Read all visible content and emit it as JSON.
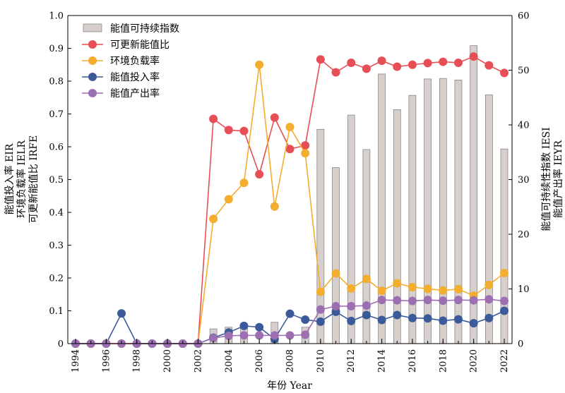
{
  "chart_data": {
    "type": "bar+line",
    "x": [
      1994,
      1995,
      1996,
      1997,
      1998,
      1999,
      2000,
      2001,
      2002,
      2003,
      2004,
      2005,
      2006,
      2007,
      2008,
      2009,
      2010,
      2011,
      2012,
      2013,
      2014,
      2015,
      2016,
      2017,
      2018,
      2019,
      2020,
      2021,
      2022
    ],
    "xticks": [
      1994,
      1996,
      1998,
      2000,
      2002,
      2004,
      2006,
      2008,
      2010,
      2012,
      2014,
      2016,
      2018,
      2020,
      2022
    ],
    "xlabel": "年份 Year",
    "ylabel_left": [
      "能值投入率 EIR",
      "环境负载率 IELR",
      "可更新能值比 IRFE"
    ],
    "ylabel_right": [
      "能值可持续性指数 IESI",
      "能值产出率 IEYR"
    ],
    "ylim_left": [
      0,
      1.0
    ],
    "yticks_left": [
      "0",
      "0.1",
      "0.2",
      "0.3",
      "0.4",
      "0.5",
      "0.6",
      "0.7",
      "0.8",
      "0.9",
      "1.0"
    ],
    "ylim_right": [
      0,
      60
    ],
    "yticks_right": [
      "0",
      "10",
      "20",
      "30",
      "40",
      "50",
      "60"
    ],
    "legend_position": "top-left",
    "bar_series": {
      "name": "能值可持续指数",
      "axis": "right",
      "color": "#d6cfcb",
      "edge_color": "#6b6b6b",
      "values": [
        0,
        0,
        0,
        0,
        0,
        0,
        0,
        0,
        0,
        2.7,
        3.0,
        3.0,
        0,
        3.9,
        0,
        3.0,
        39.2,
        32.2,
        41.8,
        35.5,
        49.3,
        42.8,
        45.4,
        48.4,
        48.5,
        48.2,
        54.5,
        45.5,
        35.6
      ]
    },
    "series": [
      {
        "name": "可更新能值比",
        "axis": "left",
        "color": "#e84e56",
        "values": [
          0,
          0,
          0,
          0,
          0,
          0,
          0,
          0,
          0,
          0.685,
          0.651,
          0.648,
          0.516,
          0.689,
          0.593,
          0.604,
          0.866,
          0.827,
          0.856,
          0.838,
          0.862,
          0.844,
          0.85,
          0.855,
          0.859,
          0.856,
          0.875,
          0.848,
          0.825
        ]
      },
      {
        "name": "环境负载率",
        "axis": "left",
        "color": "#f3ad2f",
        "values": [
          0,
          0,
          0,
          0,
          0,
          0,
          0,
          0,
          0,
          0.38,
          0.44,
          0.49,
          0.85,
          0.418,
          0.66,
          0.58,
          0.158,
          0.214,
          0.168,
          0.197,
          0.161,
          0.184,
          0.172,
          0.167,
          0.162,
          0.166,
          0.146,
          0.179,
          0.215
        ]
      },
      {
        "name": "能值投入率",
        "axis": "left",
        "color": "#3b5a9a",
        "values": [
          0,
          0,
          0,
          0.092,
          0,
          0,
          0,
          0,
          0,
          0.018,
          0.034,
          0.054,
          0.05,
          0.014,
          0.091,
          0.073,
          0.067,
          0.097,
          0.069,
          0.087,
          0.072,
          0.087,
          0.078,
          0.077,
          0.07,
          0.074,
          0.062,
          0.078,
          0.1
        ]
      },
      {
        "name": "能值产出率",
        "axis": "left",
        "color": "#9b6fb2",
        "values": [
          0,
          0,
          0,
          0,
          0,
          0,
          0,
          0,
          0,
          0.017,
          0.024,
          0.025,
          0.025,
          0.025,
          0.025,
          0.027,
          0.104,
          0.114,
          0.114,
          0.116,
          0.133,
          0.132,
          0.13,
          0.133,
          0.131,
          0.133,
          0.132,
          0.135,
          0.13
        ]
      }
    ]
  }
}
